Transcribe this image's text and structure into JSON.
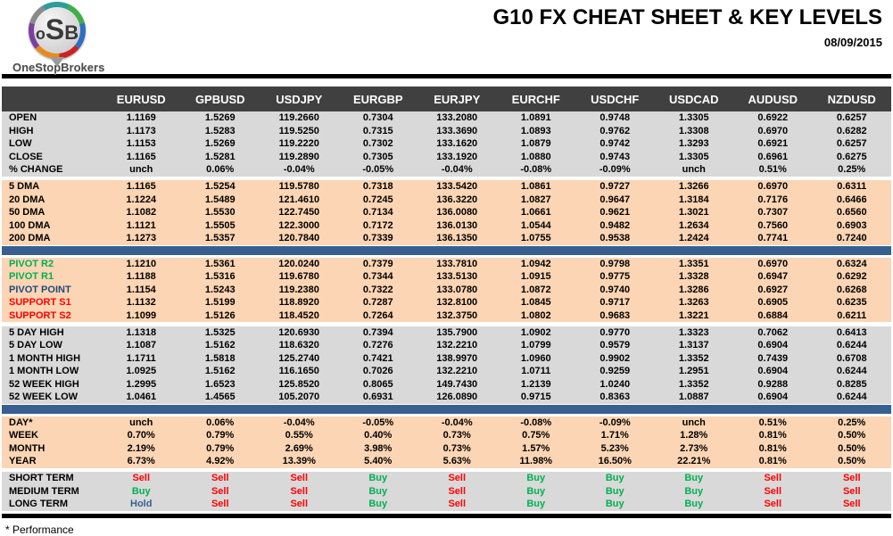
{
  "header": {
    "title": "G10 FX CHEAT SHEET & KEY LEVELS",
    "date": "08/09/2015"
  },
  "logo": {
    "letters": [
      "o",
      "S",
      "B"
    ],
    "name": "OneStopBrokers"
  },
  "footnote": "* Performance",
  "colors": {
    "header_bar": "#404040",
    "gray_row": "#D9D9D9",
    "peach_row": "#FCD5B4",
    "separator_blue": "#376091",
    "buy_green": "#00B050",
    "sell_red": "#FF0000",
    "hold_blue": "#366092",
    "pivot_point_navy": "#1F497D"
  },
  "chart_data": {
    "type": "table",
    "title": "G10 FX CHEAT SHEET & KEY LEVELS",
    "columns": [
      "EURUSD",
      "GPBUSD",
      "USDJPY",
      "EURGBP",
      "EURJPY",
      "EURCHF",
      "USDCHF",
      "USDCAD",
      "AUDUSD",
      "NZDUSD"
    ],
    "sections": [
      {
        "name": "ohlc",
        "bg": "gray",
        "after": "gap",
        "rows": [
          {
            "label": "OPEN",
            "values": [
              "1.1169",
              "1.5269",
              "119.2660",
              "0.7304",
              "133.2080",
              "1.0891",
              "0.9748",
              "1.3305",
              "0.6922",
              "0.6257"
            ]
          },
          {
            "label": "HIGH",
            "values": [
              "1.1173",
              "1.5283",
              "119.5250",
              "0.7315",
              "133.3690",
              "1.0893",
              "0.9762",
              "1.3308",
              "0.6970",
              "0.6282"
            ]
          },
          {
            "label": "LOW",
            "values": [
              "1.1153",
              "1.5269",
              "119.2220",
              "0.7302",
              "133.1620",
              "1.0879",
              "0.9742",
              "1.3293",
              "0.6921",
              "0.6257"
            ]
          },
          {
            "label": "CLOSE",
            "values": [
              "1.1165",
              "1.5281",
              "119.2890",
              "0.7305",
              "133.1920",
              "1.0880",
              "0.9743",
              "1.3305",
              "0.6961",
              "0.6275"
            ]
          },
          {
            "label": "% CHANGE",
            "values": [
              "unch",
              "0.06%",
              "-0.04%",
              "-0.05%",
              "-0.04%",
              "-0.08%",
              "-0.09%",
              "unch",
              "0.51%",
              "0.25%"
            ]
          }
        ]
      },
      {
        "name": "moving-averages",
        "bg": "peach",
        "after": "bluebar",
        "rows": [
          {
            "label": "5 DMA",
            "values": [
              "1.1165",
              "1.5254",
              "119.5780",
              "0.7318",
              "133.5420",
              "1.0861",
              "0.9727",
              "1.3266",
              "0.6970",
              "0.6311"
            ]
          },
          {
            "label": "20 DMA",
            "values": [
              "1.1224",
              "1.5489",
              "121.4610",
              "0.7245",
              "136.3220",
              "1.0827",
              "0.9647",
              "1.3184",
              "0.7176",
              "0.6466"
            ]
          },
          {
            "label": "50 DMA",
            "values": [
              "1.1082",
              "1.5530",
              "122.7450",
              "0.7134",
              "136.0080",
              "1.0661",
              "0.9621",
              "1.3021",
              "0.7307",
              "0.6560"
            ]
          },
          {
            "label": "100 DMA",
            "values": [
              "1.1121",
              "1.5505",
              "122.3000",
              "0.7172",
              "136.0130",
              "1.0544",
              "0.9482",
              "1.2634",
              "0.7560",
              "0.6903"
            ]
          },
          {
            "label": "200 DMA",
            "values": [
              "1.1273",
              "1.5357",
              "120.7840",
              "0.7339",
              "136.1350",
              "1.0755",
              "0.9538",
              "1.2424",
              "0.7741",
              "0.7240"
            ]
          }
        ]
      },
      {
        "name": "pivots",
        "bg": "peach",
        "after": "gap",
        "rows": [
          {
            "label": "PIVOT R2",
            "label_color": "green",
            "values": [
              "1.1210",
              "1.5361",
              "120.0240",
              "0.7379",
              "133.7810",
              "1.0942",
              "0.9798",
              "1.3351",
              "0.6970",
              "0.6324"
            ]
          },
          {
            "label": "PIVOT R1",
            "label_color": "green",
            "values": [
              "1.1188",
              "1.5316",
              "119.6780",
              "0.7344",
              "133.5130",
              "1.0915",
              "0.9775",
              "1.3328",
              "0.6947",
              "0.6292"
            ]
          },
          {
            "label": "PIVOT POINT",
            "label_color": "navy",
            "values": [
              "1.1154",
              "1.5243",
              "119.2380",
              "0.7322",
              "133.0780",
              "1.0872",
              "0.9740",
              "1.3286",
              "0.6927",
              "0.6268"
            ]
          },
          {
            "label": "SUPPORT S1",
            "label_color": "red",
            "values": [
              "1.1132",
              "1.5199",
              "118.8920",
              "0.7287",
              "132.8100",
              "1.0845",
              "0.9717",
              "1.3263",
              "0.6905",
              "0.6235"
            ]
          },
          {
            "label": "SUPPORT S2",
            "label_color": "red",
            "values": [
              "1.1099",
              "1.5126",
              "118.4520",
              "0.7264",
              "132.3750",
              "1.0802",
              "0.9683",
              "1.3221",
              "0.6884",
              "0.6211"
            ]
          }
        ]
      },
      {
        "name": "ranges",
        "bg": "gray",
        "after": "bluebar",
        "rows": [
          {
            "label": "5 DAY HIGH",
            "values": [
              "1.1318",
              "1.5325",
              "120.6930",
              "0.7394",
              "135.7900",
              "1.0902",
              "0.9770",
              "1.3323",
              "0.7062",
              "0.6413"
            ]
          },
          {
            "label": "5 DAY LOW",
            "values": [
              "1.1087",
              "1.5162",
              "118.6320",
              "0.7276",
              "132.2210",
              "1.0799",
              "0.9579",
              "1.3137",
              "0.6904",
              "0.6244"
            ]
          },
          {
            "label": "1 MONTH HIGH",
            "values": [
              "1.1711",
              "1.5818",
              "125.2740",
              "0.7421",
              "138.9970",
              "1.0960",
              "0.9902",
              "1.3352",
              "0.7439",
              "0.6708"
            ]
          },
          {
            "label": "1 MONTH LOW",
            "values": [
              "1.0925",
              "1.5162",
              "116.1650",
              "0.7026",
              "132.2210",
              "1.0711",
              "0.9259",
              "1.2951",
              "0.6904",
              "0.6244"
            ]
          },
          {
            "label": "52 WEEK HIGH",
            "values": [
              "1.2995",
              "1.6523",
              "125.8520",
              "0.8065",
              "149.7430",
              "1.2139",
              "1.0240",
              "1.3352",
              "0.9288",
              "0.8285"
            ]
          },
          {
            "label": "52 WEEK LOW",
            "values": [
              "1.0461",
              "1.4565",
              "105.2070",
              "0.6931",
              "126.0890",
              "0.9715",
              "0.8363",
              "1.0887",
              "0.6904",
              "0.6244"
            ]
          }
        ]
      },
      {
        "name": "performance",
        "bg": "peach",
        "after": "gap",
        "rows": [
          {
            "label": "DAY*",
            "values": [
              "unch",
              "0.06%",
              "-0.04%",
              "-0.05%",
              "-0.04%",
              "-0.08%",
              "-0.09%",
              "unch",
              "0.51%",
              "0.25%"
            ]
          },
          {
            "label": "WEEK",
            "values": [
              "0.70%",
              "0.79%",
              "0.55%",
              "0.40%",
              "0.73%",
              "0.75%",
              "1.71%",
              "1.28%",
              "0.81%",
              "0.50%"
            ]
          },
          {
            "label": "MONTH",
            "values": [
              "2.19%",
              "0.79%",
              "2.69%",
              "3.98%",
              "0.73%",
              "1.57%",
              "5.23%",
              "2.73%",
              "0.81%",
              "0.50%"
            ]
          },
          {
            "label": "YEAR",
            "values": [
              "6.73%",
              "4.92%",
              "13.39%",
              "5.40%",
              "5.63%",
              "11.98%",
              "16.50%",
              "22.21%",
              "0.81%",
              "0.50%"
            ]
          }
        ]
      },
      {
        "name": "signals",
        "bg": "gray",
        "after": "none",
        "colored_values": true,
        "rows": [
          {
            "label": "SHORT TERM",
            "values": [
              "Sell",
              "Sell",
              "Sell",
              "Buy",
              "Sell",
              "Buy",
              "Buy",
              "Buy",
              "Sell",
              "Sell"
            ]
          },
          {
            "label": "MEDIUM TERM",
            "values": [
              "Buy",
              "Sell",
              "Sell",
              "Buy",
              "Sell",
              "Buy",
              "Buy",
              "Buy",
              "Sell",
              "Sell"
            ]
          },
          {
            "label": "LONG TERM",
            "values": [
              "Hold",
              "Sell",
              "Sell",
              "Buy",
              "Sell",
              "Buy",
              "Buy",
              "Buy",
              "Sell",
              "Sell"
            ]
          }
        ]
      }
    ]
  }
}
